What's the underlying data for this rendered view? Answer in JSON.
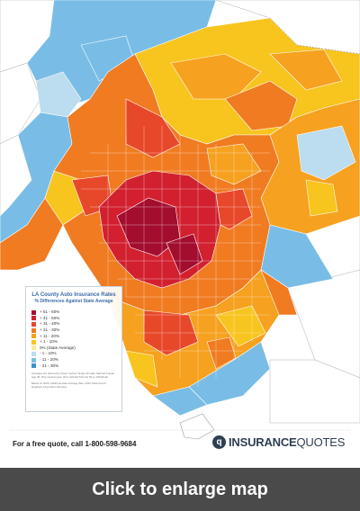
{
  "legend": {
    "title": "LA County Auto Insurance Rates",
    "subtitle": "% Differences Against State Average",
    "items": [
      {
        "label": "+ 51 - 60%",
        "color": "#a30d2e"
      },
      {
        "label": "+ 41 - 50%",
        "color": "#d2202f"
      },
      {
        "label": "+ 31 - 40%",
        "color": "#e8482a"
      },
      {
        "label": "+ 21 - 30%",
        "color": "#f07b21"
      },
      {
        "label": "+ 11 - 20%",
        "color": "#f6a11f"
      },
      {
        "label": "+ 1 - 10%",
        "color": "#f8c41e"
      },
      {
        "label": "0% (State Average)",
        "color": "#f8ea9c"
      },
      {
        "label": "- 1 - 10%",
        "color": "#bcdcf0"
      },
      {
        "label": "- 11 - 20%",
        "color": "#79bde6"
      },
      {
        "label": "- 21 - 30%",
        "color": "#3f93cf"
      }
    ],
    "note_1": "Averages are derived by Insure Vorbos: Single 30 male, Married Couple Age 45, Pins owned types, Ohm Vehicle/Trck Car 50+L-1/P/H/Liab.",
    "note_2": "Based on NAIC California state average data, 2015. Data source: Quadrant Information Services"
  },
  "footer": {
    "quote_text": "For a free quote, call 1-800-598-9684",
    "logo_mark": "q",
    "logo_text_bold": "INSURANCE",
    "logo_text_light": "QUOTES"
  },
  "enlarge_button": {
    "label": "Click to enlarge map"
  },
  "colors": {
    "background_grey": "#ffffff",
    "bar": "#4a4a4a",
    "water": "#ffffff"
  }
}
